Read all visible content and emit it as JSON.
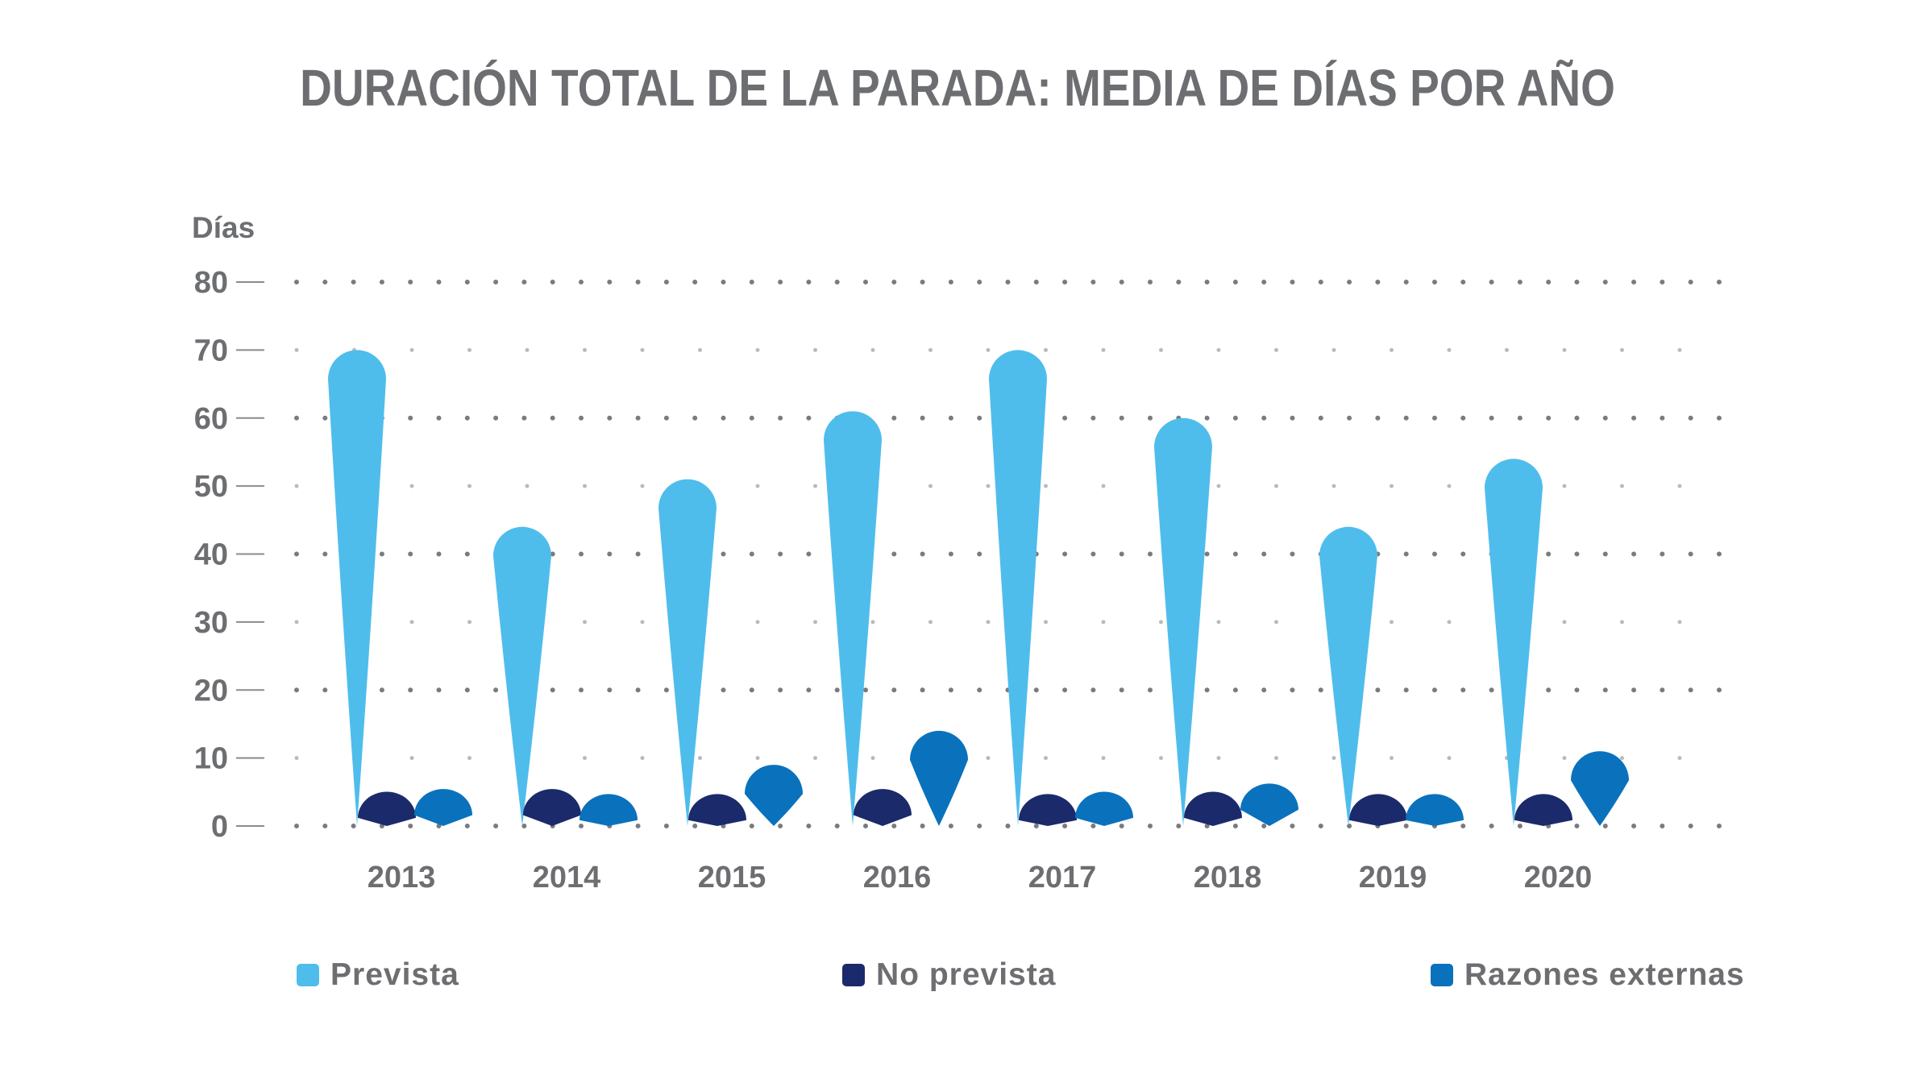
{
  "chart_data": {
    "type": "bar",
    "title": "DURACIÓN TOTAL DE LA PARADA: MEDIA DE DÍAS POR AÑO",
    "ylabel": "Días",
    "xlabel": "",
    "ylim": [
      0,
      80
    ],
    "yticks": [
      "0",
      "10",
      "20",
      "30",
      "40",
      "50",
      "60",
      "70",
      "80"
    ],
    "categories": [
      "2013",
      "2014",
      "2015",
      "2016",
      "2017",
      "2018",
      "2019",
      "2020"
    ],
    "series": [
      {
        "name": "Prevista",
        "color": "#4fbdec",
        "values": [
          70,
          44,
          51,
          61,
          70,
          60,
          44,
          54
        ]
      },
      {
        "name": "No prevista",
        "color": "#1b2a6b",
        "values": [
          3,
          4,
          2,
          4,
          2,
          3,
          1,
          2
        ]
      },
      {
        "name": "Razones externas",
        "color": "#0a72bc",
        "values": [
          4,
          2,
          9,
          14,
          3,
          6,
          1,
          11
        ]
      }
    ],
    "grid": true,
    "legend": "bottom"
  }
}
